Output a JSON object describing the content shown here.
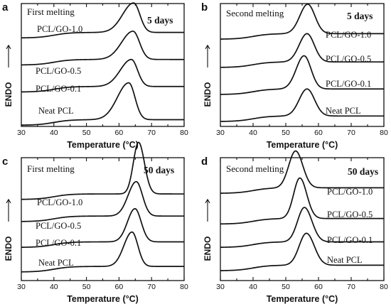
{
  "chart_data": [
    {
      "panel_letter": "a",
      "type": "line",
      "title": "First melting",
      "annotation": "5 days",
      "xlabel": "Temperature (°C)",
      "ylabel": "ENDO",
      "xlim": [
        30,
        80
      ],
      "xticks": [
        "30",
        "40",
        "50",
        "60",
        "70",
        "80"
      ],
      "series": [
        {
          "name": "PCL/GO-1.0",
          "baseline": 0.74,
          "peak_T": 64.5,
          "peak_height": 0.24,
          "width_left": 3.4,
          "width_right": 1.9,
          "onset_T": 40
        },
        {
          "name": "PCL/GO-0.5",
          "baseline": 0.52,
          "peak_T": 64.3,
          "peak_height": 0.23,
          "width_left": 3.5,
          "width_right": 2.0,
          "onset_T": 40
        },
        {
          "name": "PCL/GO-0.1",
          "baseline": 0.3,
          "peak_T": 63.8,
          "peak_height": 0.22,
          "width_left": 3.4,
          "width_right": 1.9,
          "onset_T": 40
        },
        {
          "name": "Neat PCL",
          "baseline": 0.03,
          "peak_T": 63.0,
          "peak_height": 0.3,
          "width_left": 3.5,
          "width_right": 1.9,
          "onset_T": 40
        }
      ]
    },
    {
      "panel_letter": "b",
      "type": "line",
      "title": "Second melting",
      "annotation": "5 days",
      "xlabel": "Temperature (°C)",
      "ylabel": "ENDO",
      "xlim": [
        30,
        80
      ],
      "xticks": [
        "30",
        "40",
        "50",
        "60",
        "70",
        "80"
      ],
      "series": [
        {
          "name": "PCL/GO-1.0",
          "baseline": 0.73,
          "peak_T": 56.7,
          "peak_height": 0.24,
          "width_left": 2.4,
          "width_right": 2.2,
          "onset_T": 40
        },
        {
          "name": "PCL/GO-0.5",
          "baseline": 0.5,
          "peak_T": 56.5,
          "peak_height": 0.23,
          "width_left": 2.4,
          "width_right": 2.2,
          "onset_T": 40
        },
        {
          "name": "PCL/GO-0.1",
          "baseline": 0.28,
          "peak_T": 55.6,
          "peak_height": 0.27,
          "width_left": 2.4,
          "width_right": 2.1,
          "onset_T": 40
        },
        {
          "name": "Neat PCL",
          "baseline": 0.06,
          "peak_T": 56.5,
          "peak_height": 0.22,
          "width_left": 2.4,
          "width_right": 2.3,
          "onset_T": 40
        }
      ]
    },
    {
      "panel_letter": "c",
      "type": "line",
      "title": "First melting",
      "annotation": "50 days",
      "xlabel": "Temperature (°C)",
      "ylabel": "ENDO",
      "xlim": [
        30,
        80
      ],
      "xticks": [
        "30",
        "40",
        "50",
        "60",
        "70",
        "80"
      ],
      "series": [
        {
          "name": "PCL/GO-1.0",
          "baseline": 0.68,
          "peak_T": 66.0,
          "peak_height": 0.42,
          "width_left": 1.6,
          "width_right": 1.8,
          "onset_T": 40
        },
        {
          "name": "PCL/GO-0.5",
          "baseline": 0.5,
          "peak_T": 65.3,
          "peak_height": 0.28,
          "width_left": 2.5,
          "width_right": 1.9,
          "onset_T": 40
        },
        {
          "name": "PCL/GO-0.1",
          "baseline": 0.29,
          "peak_T": 64.9,
          "peak_height": 0.27,
          "width_left": 2.3,
          "width_right": 1.9,
          "onset_T": 40
        },
        {
          "name": "Neat PCL",
          "baseline": 0.09,
          "peak_T": 64.0,
          "peak_height": 0.28,
          "width_left": 2.5,
          "width_right": 1.8,
          "onset_T": 40
        }
      ]
    },
    {
      "panel_letter": "d",
      "type": "line",
      "title": "Second melting",
      "annotation": "50 days",
      "xlabel": "Temperature (°C)",
      "ylabel": "ENDO",
      "xlim": [
        30,
        80
      ],
      "xticks": [
        "30",
        "40",
        "50",
        "60",
        "70",
        "80"
      ],
      "series": [
        {
          "name": "PCL/GO-1.0",
          "baseline": 0.73,
          "peak_T": 53.0,
          "peak_height": 0.3,
          "width_left": 2.1,
          "width_right": 2.2,
          "onset_T": 40
        },
        {
          "name": "PCL/GO-0.5",
          "baseline": 0.48,
          "peak_T": 54.3,
          "peak_height": 0.33,
          "width_left": 1.9,
          "width_right": 2.1,
          "onset_T": 40
        },
        {
          "name": "PCL/GO-0.1",
          "baseline": 0.29,
          "peak_T": 55.7,
          "peak_height": 0.28,
          "width_left": 2.1,
          "width_right": 2.3,
          "onset_T": 40
        },
        {
          "name": "Neat PCL",
          "baseline": 0.1,
          "peak_T": 56.3,
          "peak_height": 0.26,
          "width_left": 2.2,
          "width_right": 2.4,
          "onset_T": 40
        }
      ]
    }
  ]
}
